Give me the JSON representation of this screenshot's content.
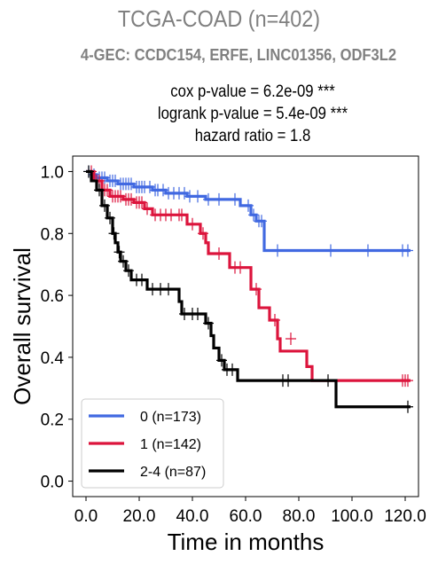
{
  "header": {
    "title": "TCGA-COAD (n=402)",
    "subtitle": "4-GEC: CCDC154, ERFE, LINC01356, ODF3L2"
  },
  "stats": {
    "cox": "cox p-value = 6.2e-09 ***",
    "logrank": "logrank p-value = 5.4e-09 ***",
    "hazard_ratio": "hazard ratio = 1.8"
  },
  "chart_data": {
    "type": "line",
    "subtype": "kaplan-meier step",
    "xlabel": "Time in months",
    "ylabel": "Overall survival",
    "xlim": [
      -5,
      125
    ],
    "ylim": [
      -0.05,
      1.05
    ],
    "xticks": [
      0,
      20,
      40,
      60,
      80,
      100,
      120
    ],
    "xtick_labels": [
      "0.0",
      "20.0",
      "40.0",
      "60.0",
      "80.0",
      "100.0",
      "120.0"
    ],
    "yticks": [
      0.0,
      0.2,
      0.4,
      0.6,
      0.8,
      1.0
    ],
    "ytick_labels": [
      "0.0",
      "0.2",
      "0.4",
      "0.6",
      "0.8",
      "1.0"
    ],
    "grid": false,
    "legend_position": "lower-left",
    "series": [
      {
        "name": "0 (n=173)",
        "color": "#4169e1",
        "steps": [
          [
            0,
            1.0
          ],
          [
            2,
            0.99
          ],
          [
            4,
            0.98
          ],
          [
            8,
            0.97
          ],
          [
            12,
            0.96
          ],
          [
            18,
            0.95
          ],
          [
            25,
            0.94
          ],
          [
            30,
            0.93
          ],
          [
            38,
            0.92
          ],
          [
            45,
            0.91
          ],
          [
            58,
            0.89
          ],
          [
            62,
            0.86
          ],
          [
            64,
            0.84
          ],
          [
            67,
            0.745
          ],
          [
            122,
            0.745
          ]
        ],
        "censors": [
          [
            1,
            1.0
          ],
          [
            3,
            0.99
          ],
          [
            5,
            0.98
          ],
          [
            6,
            0.98
          ],
          [
            7,
            0.98
          ],
          [
            9,
            0.97
          ],
          [
            10,
            0.97
          ],
          [
            11,
            0.97
          ],
          [
            13,
            0.96
          ],
          [
            14,
            0.96
          ],
          [
            15,
            0.96
          ],
          [
            16,
            0.96
          ],
          [
            17,
            0.96
          ],
          [
            19,
            0.95
          ],
          [
            20,
            0.95
          ],
          [
            21,
            0.95
          ],
          [
            22,
            0.95
          ],
          [
            24,
            0.95
          ],
          [
            26,
            0.94
          ],
          [
            27,
            0.94
          ],
          [
            29,
            0.94
          ],
          [
            31,
            0.93
          ],
          [
            33,
            0.93
          ],
          [
            35,
            0.93
          ],
          [
            37,
            0.93
          ],
          [
            39,
            0.92
          ],
          [
            42,
            0.92
          ],
          [
            46,
            0.91
          ],
          [
            50,
            0.91
          ],
          [
            56,
            0.91
          ],
          [
            61,
            0.89
          ],
          [
            63,
            0.86
          ],
          [
            65,
            0.84
          ],
          [
            66,
            0.84
          ],
          [
            72,
            0.745
          ],
          [
            92,
            0.745
          ],
          [
            106,
            0.745
          ],
          [
            119,
            0.745
          ],
          [
            121,
            0.745
          ]
        ]
      },
      {
        "name": "1 (n=142)",
        "color": "#dc143c",
        "steps": [
          [
            0,
            1.0
          ],
          [
            3,
            0.97
          ],
          [
            6,
            0.94
          ],
          [
            9,
            0.92
          ],
          [
            14,
            0.91
          ],
          [
            18,
            0.9
          ],
          [
            22,
            0.88
          ],
          [
            25,
            0.86
          ],
          [
            38,
            0.83
          ],
          [
            43,
            0.8
          ],
          [
            45,
            0.77
          ],
          [
            46,
            0.735
          ],
          [
            54,
            0.69
          ],
          [
            62,
            0.62
          ],
          [
            65,
            0.56
          ],
          [
            69,
            0.52
          ],
          [
            72,
            0.46
          ],
          [
            73,
            0.42
          ],
          [
            83,
            0.37
          ],
          [
            85,
            0.325
          ],
          [
            122,
            0.325
          ]
        ],
        "censors": [
          [
            2,
            1.0
          ],
          [
            4,
            0.97
          ],
          [
            5,
            0.97
          ],
          [
            7,
            0.94
          ],
          [
            8,
            0.94
          ],
          [
            10,
            0.92
          ],
          [
            11,
            0.92
          ],
          [
            12,
            0.92
          ],
          [
            13,
            0.92
          ],
          [
            15,
            0.91
          ],
          [
            16,
            0.91
          ],
          [
            17,
            0.91
          ],
          [
            19,
            0.9
          ],
          [
            20,
            0.9
          ],
          [
            21,
            0.9
          ],
          [
            23,
            0.88
          ],
          [
            26,
            0.86
          ],
          [
            28,
            0.86
          ],
          [
            30,
            0.86
          ],
          [
            32,
            0.86
          ],
          [
            35,
            0.86
          ],
          [
            36,
            0.86
          ],
          [
            40,
            0.83
          ],
          [
            44,
            0.8
          ],
          [
            50,
            0.735
          ],
          [
            56,
            0.69
          ],
          [
            58,
            0.69
          ],
          [
            64,
            0.62
          ],
          [
            71,
            0.52
          ],
          [
            77,
            0.46
          ],
          [
            119,
            0.325
          ],
          [
            120,
            0.325
          ],
          [
            121,
            0.325
          ]
        ]
      },
      {
        "name": "2-4 (n=87)",
        "color": "#000000",
        "steps": [
          [
            0,
            1.0
          ],
          [
            2,
            0.97
          ],
          [
            4,
            0.94
          ],
          [
            6,
            0.89
          ],
          [
            8,
            0.85
          ],
          [
            10,
            0.8
          ],
          [
            11,
            0.77
          ],
          [
            12,
            0.74
          ],
          [
            13,
            0.71
          ],
          [
            15,
            0.68
          ],
          [
            17,
            0.65
          ],
          [
            23,
            0.62
          ],
          [
            35,
            0.58
          ],
          [
            36,
            0.54
          ],
          [
            45,
            0.51
          ],
          [
            47,
            0.47
          ],
          [
            48,
            0.43
          ],
          [
            50,
            0.39
          ],
          [
            52,
            0.36
          ],
          [
            57,
            0.325
          ],
          [
            93,
            0.325
          ],
          [
            94,
            0.24
          ],
          [
            122,
            0.24
          ]
        ],
        "censors": [
          [
            1,
            1.0
          ],
          [
            5,
            0.94
          ],
          [
            7,
            0.89
          ],
          [
            9,
            0.85
          ],
          [
            10.5,
            0.8
          ],
          [
            12.5,
            0.74
          ],
          [
            14,
            0.71
          ],
          [
            16,
            0.68
          ],
          [
            19,
            0.65
          ],
          [
            21,
            0.65
          ],
          [
            25,
            0.62
          ],
          [
            28,
            0.62
          ],
          [
            31,
            0.62
          ],
          [
            37,
            0.54
          ],
          [
            40,
            0.54
          ],
          [
            42,
            0.54
          ],
          [
            46,
            0.51
          ],
          [
            51,
            0.39
          ],
          [
            53,
            0.36
          ],
          [
            55,
            0.36
          ],
          [
            74,
            0.325
          ],
          [
            76,
            0.325
          ],
          [
            91,
            0.325
          ],
          [
            121,
            0.24
          ]
        ]
      }
    ]
  }
}
